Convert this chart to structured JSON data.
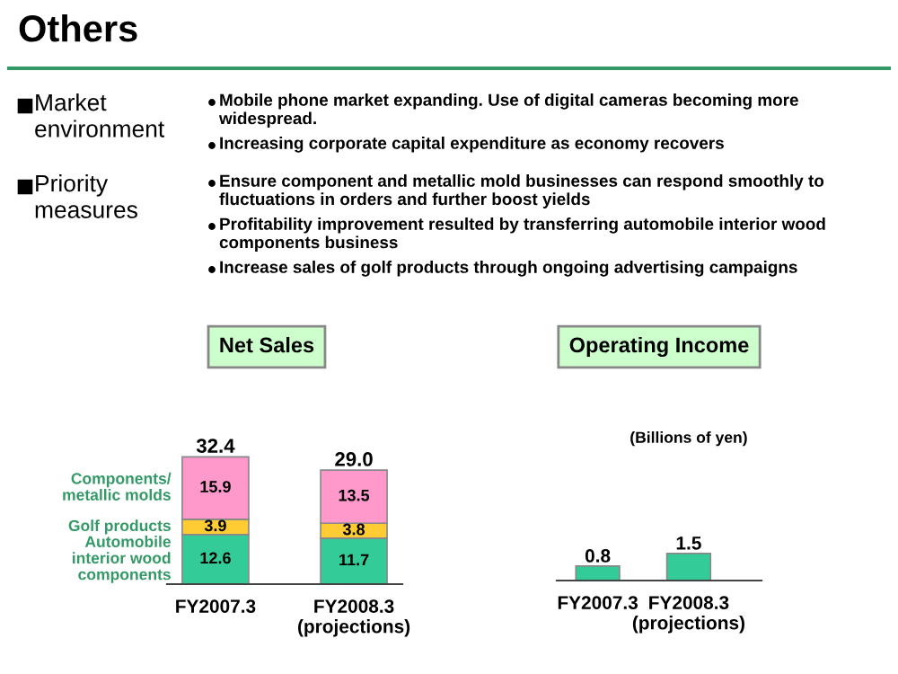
{
  "chart_data": [
    {
      "type": "other",
      "title": "Others"
    },
    {
      "type": "other",
      "title": "Market\nenvironment",
      "annotations": [
        "Mobile phone market expanding. Use of digital cameras becoming more\nwidespread.",
        "Increasing corporate capital expenditure as economy recovers"
      ]
    },
    {
      "type": "other",
      "title": "Priority\nmeasures",
      "annotations": [
        "Ensure component and metallic mold businesses can respond smoothly to\nfluctuations in orders and further boost yields",
        "Profitability improvement resulted by transferring automobile interior wood\ncomponents business",
        "Increase sales of golf products through ongoing advertising campaigns"
      ]
    },
    {
      "type": "bar",
      "title": "Net Sales",
      "stacked": true,
      "data_labels": true,
      "categories": [
        "FY2007.3",
        "FY2008.3\n(projections)"
      ],
      "series": [
        {
          "name": "Automobile\ninterior wood\ncomponents",
          "color": "#33cc99",
          "values": [
            12.6,
            11.7
          ]
        },
        {
          "name": "Golf products",
          "color": "#ffcc33",
          "values": [
            3.9,
            3.8
          ]
        },
        {
          "name": "Components/\nmetallic molds",
          "color": "#ff99cc",
          "values": [
            15.9,
            13.5
          ]
        }
      ],
      "totals": [
        "32.4",
        "29.0"
      ]
    },
    {
      "type": "bar",
      "title": "Operating Income",
      "data_labels": true,
      "categories": [
        "FY2007.3",
        "FY2008.3\n(projections)"
      ],
      "values": [
        0.8,
        1.5
      ],
      "color": "#33cc99",
      "annotations": [
        "(Billions of yen)"
      ]
    }
  ]
}
